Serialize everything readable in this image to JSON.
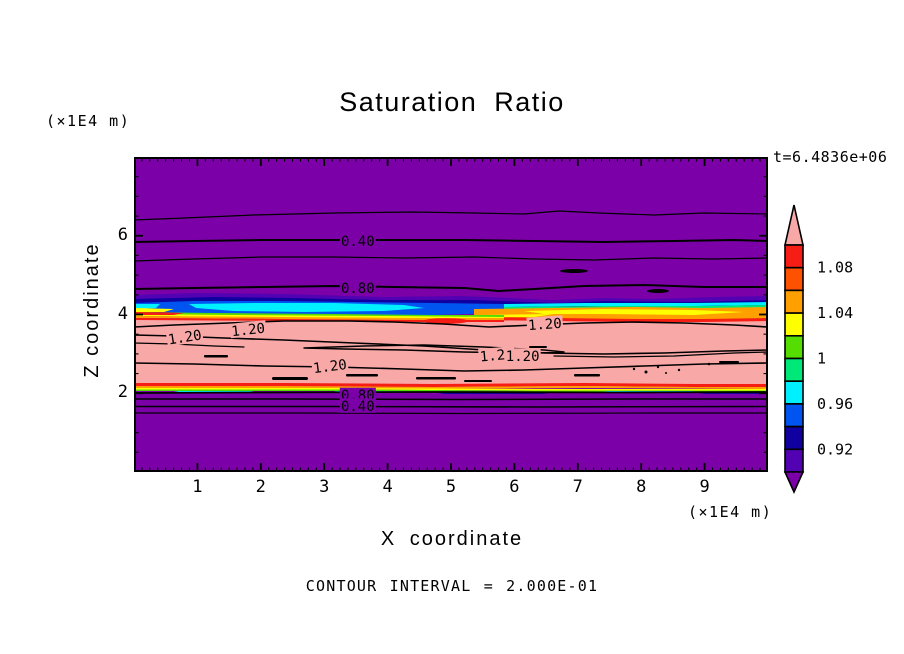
{
  "title": "Saturation Ratio",
  "time_label": "t=6.4836e+06",
  "footer": "CONTOUR INTERVAL = 2.000E-01",
  "palette": {
    "background": "#ffffff",
    "line": "#000000",
    "purple": "#7c00a8",
    "dark_violet": "#5202b2",
    "navy": "#1000a0",
    "blue": "#0055f0",
    "cyan": "#00f0ff",
    "spring_green": "#00e878",
    "green": "#55dc00",
    "yellow": "#ffff00",
    "orange": "#ffa000",
    "orange_red": "#ff5200",
    "red": "#f51d14",
    "pink": "#f9a8a8"
  },
  "chart_data": {
    "type": "heatmap",
    "subtype": "filled-contour",
    "title": "Saturation Ratio",
    "xlabel": "X coordinate",
    "ylabel": "Z coordinate",
    "x_unit_label": "(×1E4 m)",
    "z_unit_label": "(×1E4 m)",
    "time_annotation": "t=6.4836e+06",
    "contour_interval_label": "CONTOUR INTERVAL = 2.000E-01",
    "line_contour_interval": 0.2,
    "fill_levels": {
      "min": 0.9,
      "max": 1.1,
      "step": 0.02
    },
    "xlim": [
      0,
      10
    ],
    "zlim": [
      0,
      8
    ],
    "x_ticks": [
      1,
      2,
      3,
      4,
      5,
      6,
      7,
      8,
      9
    ],
    "z_ticks": [
      2,
      4,
      6
    ],
    "x_minor_step": 0.125,
    "z_minor_step": 0.5,
    "grid": false,
    "contour_labels": [
      {
        "text": "0.40",
        "x": 3.53,
        "z": 5.87,
        "rot": 0,
        "bg": "purple"
      },
      {
        "text": "0.80",
        "x": 3.53,
        "z": 4.67,
        "rot": 0,
        "bg": "purple"
      },
      {
        "text": "1.20",
        "x": 0.8,
        "z": 3.43,
        "rot": -9,
        "bg": "pink"
      },
      {
        "text": "1.20",
        "x": 1.8,
        "z": 3.62,
        "rot": -6,
        "bg": "pink"
      },
      {
        "text": "1.20",
        "x": 6.48,
        "z": 3.76,
        "rot": -4,
        "bg": "pink"
      },
      {
        "text": "1.20",
        "x": 5.72,
        "z": 2.97,
        "rot": -5,
        "bg": "pink"
      },
      {
        "text": "1.20",
        "x": 6.13,
        "z": 2.95,
        "rot": 0,
        "bg": "pink"
      },
      {
        "text": "1.20",
        "x": 3.09,
        "z": 2.69,
        "rot": -7,
        "bg": "pink"
      },
      {
        "text": "0.80",
        "x": 3.53,
        "z": 1.95,
        "rot": 0,
        "bg": "purple"
      },
      {
        "text": "0.40",
        "x": 3.53,
        "z": 1.68,
        "rot": 0,
        "bg": "purple"
      }
    ],
    "colorbar": {
      "over": "pink",
      "segments_top_to_bottom": [
        "red",
        "orange_red",
        "orange",
        "yellow",
        "green",
        "spring_green",
        "cyan",
        "blue",
        "navy",
        "dark_violet"
      ],
      "under": "purple",
      "labels": [
        "1.08",
        "1.04",
        "1",
        "0.96",
        "0.92"
      ],
      "label_values": [
        1.08,
        1.04,
        1.0,
        0.96,
        0.92
      ]
    }
  }
}
